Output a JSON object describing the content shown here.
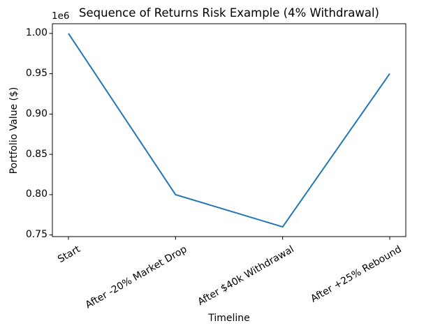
{
  "chart_data": {
    "type": "line",
    "title": "Sequence of Returns Risk Example (4% Withdrawal)",
    "xlabel": "Timeline",
    "ylabel": "Portfolio Value ($)",
    "categories": [
      "Start",
      "After -20% Market Drop",
      "After $40k Withdrawal",
      "After +25% Rebound"
    ],
    "values": [
      1000000,
      800000,
      760000,
      950000
    ],
    "xlim": [
      -0.15,
      3.15
    ],
    "ylim": [
      748000,
      1012000
    ],
    "yticks": [
      750000,
      800000,
      850000,
      900000,
      950000,
      1000000
    ],
    "ytick_labels": [
      "0.75",
      "0.80",
      "0.85",
      "0.90",
      "0.95",
      "1.00"
    ],
    "offset_text": "1e6",
    "x_tick_rotation_deg": 30,
    "line_color": "#1f77b4",
    "line_width": 2,
    "spine_color": "#000000",
    "background_color": "#ffffff",
    "grid": false,
    "legend": null
  }
}
